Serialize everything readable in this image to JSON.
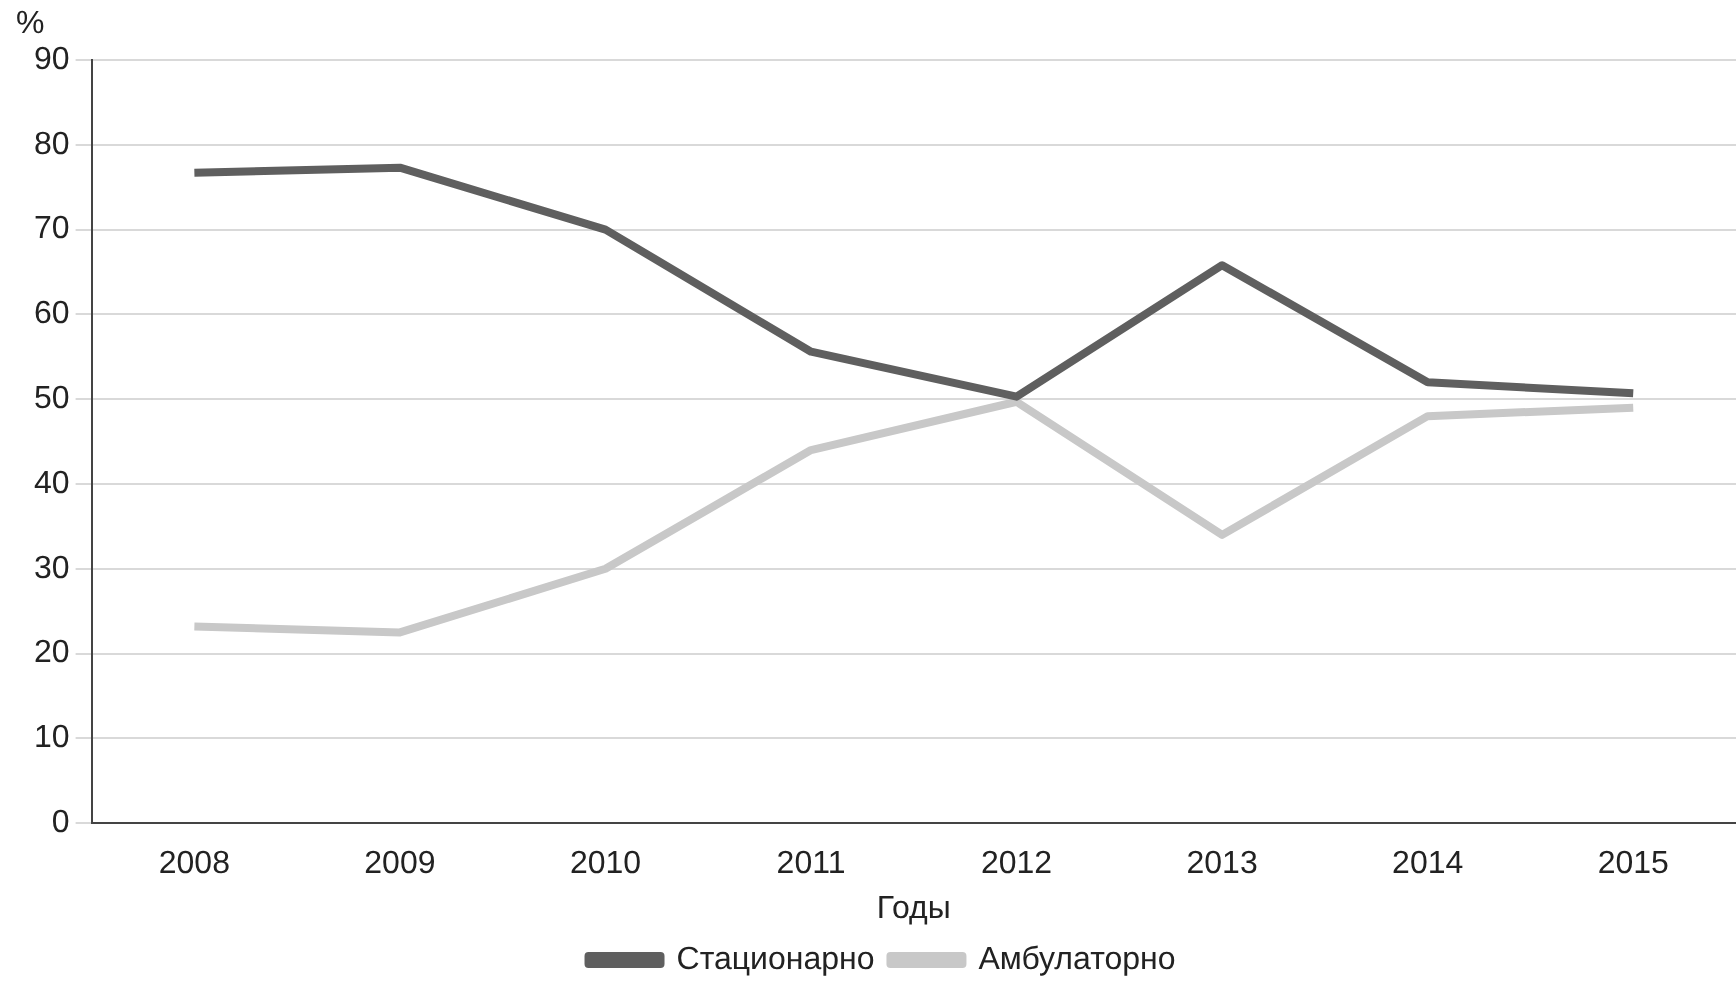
{
  "chart_data": {
    "type": "line",
    "xlabel": "Годы",
    "ylabel": "%",
    "categories": [
      "2008",
      "2009",
      "2010",
      "2011",
      "2012",
      "2013",
      "2014",
      "2015"
    ],
    "series": [
      {
        "name": "Стационарно",
        "color": "#5f5f5f",
        "values": [
          76.7,
          77.3,
          70,
          55.6,
          50.3,
          65.8,
          52,
          50.7
        ]
      },
      {
        "name": "Амбулаторно",
        "color": "#c8c8c8",
        "values": [
          23.2,
          22.5,
          30,
          44,
          49.7,
          34,
          48,
          49
        ]
      }
    ],
    "ylim": [
      0,
      90
    ],
    "yticks": [
      0,
      10,
      20,
      30,
      40,
      50,
      60,
      70,
      80,
      90
    ],
    "grid": "y",
    "legend": "bottom",
    "marker": "none",
    "line_style": "solid"
  }
}
